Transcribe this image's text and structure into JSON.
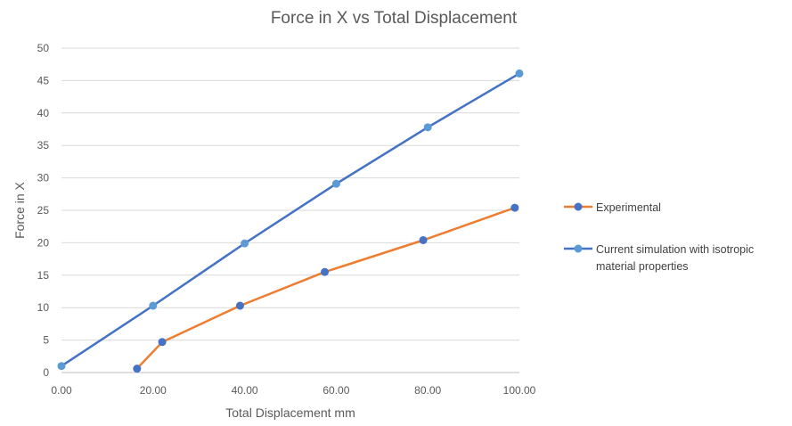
{
  "chart_data": {
    "type": "scatter",
    "title": "Force in X vs Total Displacement",
    "xlabel": "Total Displacement mm",
    "ylabel": "Force in X",
    "xlim": [
      0,
      100
    ],
    "ylim": [
      0,
      50
    ],
    "x_ticks": [
      "0.00",
      "20.00",
      "40.00",
      "60.00",
      "80.00",
      "100.00"
    ],
    "y_ticks": [
      "0",
      "5",
      "10",
      "15",
      "20",
      "25",
      "30",
      "35",
      "40",
      "45",
      "50"
    ],
    "grid": "horizontal",
    "legend_position": "right",
    "series": [
      {
        "name": "Experimental",
        "line_color": "#ED7D31",
        "marker_color": "#4472C4",
        "points": [
          {
            "x": 16.5,
            "y": 0.6
          },
          {
            "x": 22.0,
            "y": 4.7
          },
          {
            "x": 39.0,
            "y": 10.3
          },
          {
            "x": 57.5,
            "y": 15.5
          },
          {
            "x": 79.0,
            "y": 20.4
          },
          {
            "x": 99.0,
            "y": 25.4
          }
        ]
      },
      {
        "name": "Current simulation with isotropic material properties",
        "line_color": "#4472C4",
        "marker_color": "#5B9BD5",
        "points": [
          {
            "x": 0.0,
            "y": 1.0
          },
          {
            "x": 20.0,
            "y": 10.3
          },
          {
            "x": 40.0,
            "y": 19.9
          },
          {
            "x": 60.0,
            "y": 29.1
          },
          {
            "x": 80.0,
            "y": 37.8
          },
          {
            "x": 100.0,
            "y": 46.1
          }
        ]
      }
    ]
  }
}
